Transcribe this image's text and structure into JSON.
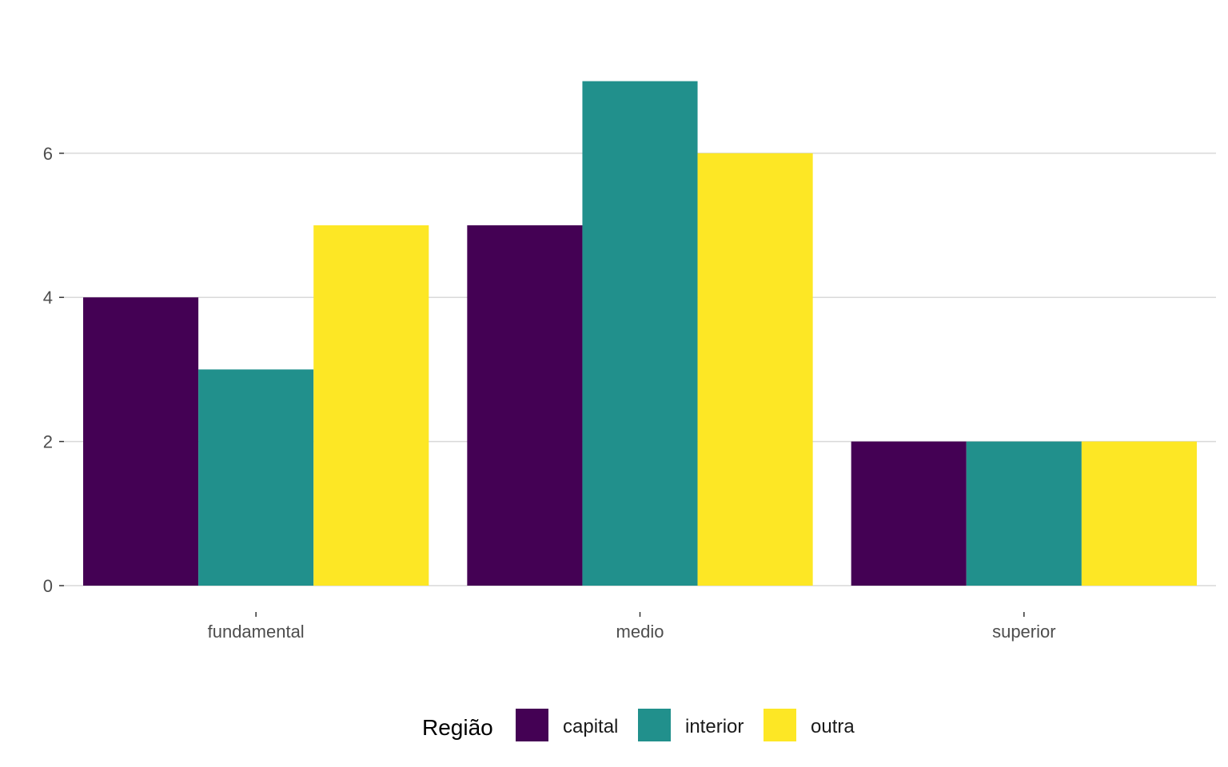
{
  "chart_data": {
    "type": "bar",
    "title": "",
    "xlabel": "",
    "ylabel": "",
    "categories": [
      "fundamental",
      "medio",
      "superior"
    ],
    "series": [
      {
        "name": "capital",
        "color": "#440154",
        "values": [
          4,
          5,
          2
        ]
      },
      {
        "name": "interior",
        "color": "#21908C",
        "values": [
          3,
          7,
          2
        ]
      },
      {
        "name": "outra",
        "color": "#FDE725",
        "values": [
          5,
          6,
          2
        ]
      }
    ],
    "ylim": [
      0,
      7.4
    ],
    "yticks": [
      0,
      2,
      4,
      6
    ],
    "grid": "horizontal major",
    "legend": {
      "title": "Região",
      "placement": "bottom"
    }
  }
}
